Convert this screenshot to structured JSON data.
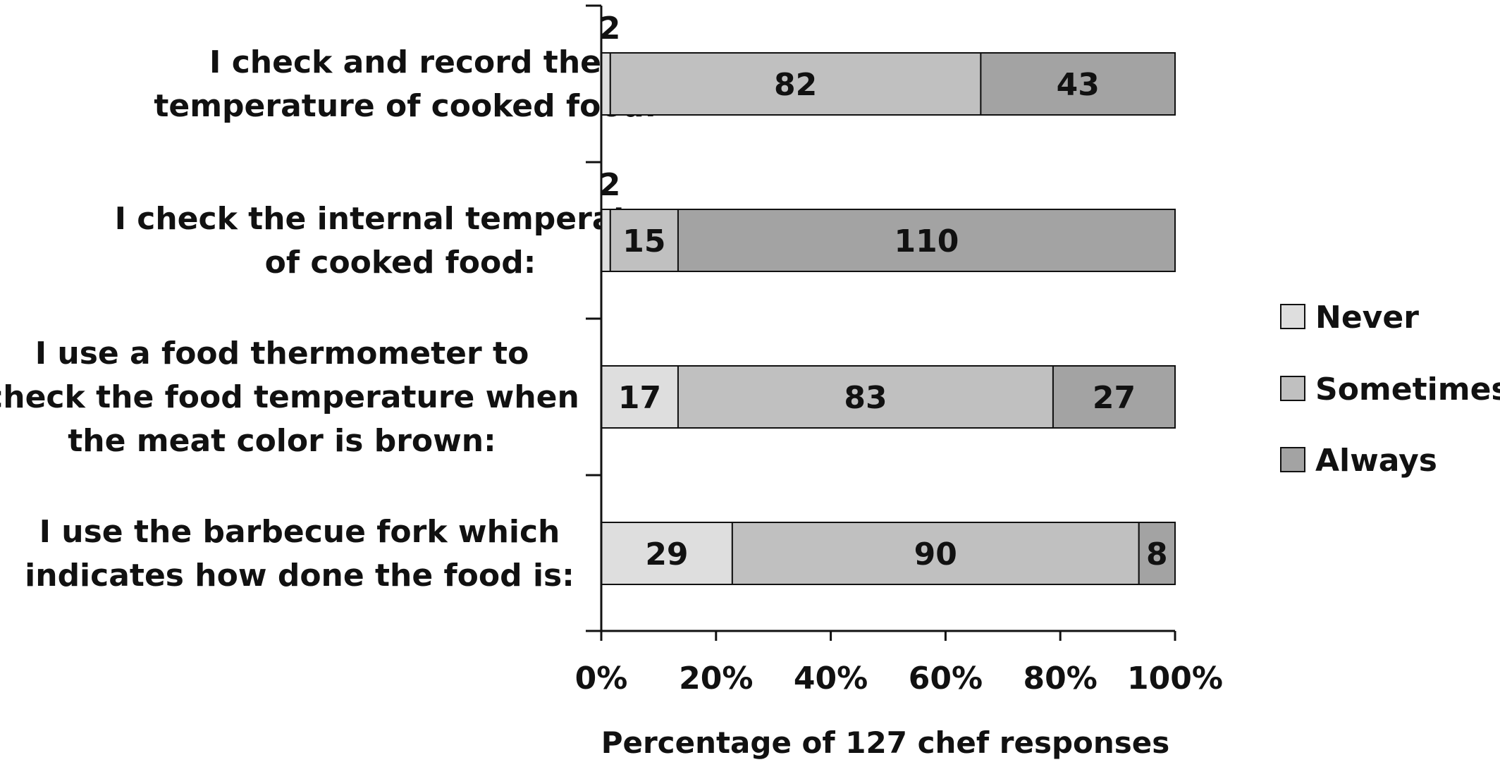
{
  "chart_data": {
    "type": "bar",
    "orientation": "horizontal",
    "stacked": "percent",
    "categories": [
      [
        "I check and record the",
        "temperature of cooked food:"
      ],
      [
        "I check the internal temperature",
        "of cooked food:"
      ],
      [
        "I use a food thermometer to",
        "check the food temperature when",
        "the meat color is brown:"
      ],
      [
        "I use the barbecue fork which",
        "indicates how done the food is:"
      ]
    ],
    "series": [
      {
        "name": "Never",
        "values": [
          2,
          2,
          17,
          29
        ],
        "color": "#dedede"
      },
      {
        "name": "Sometimes",
        "values": [
          82,
          15,
          83,
          90
        ],
        "color": "#c0c0c0"
      },
      {
        "name": "Always",
        "values": [
          43,
          110,
          27,
          8
        ],
        "color": "#a3a3a3"
      }
    ],
    "xlabel": "Percentage of 127 chef responses",
    "ylabel": "",
    "xlim": [
      0,
      100
    ],
    "xticks": [
      "0%",
      "20%",
      "40%",
      "60%",
      "80%",
      "100%"
    ],
    "legend": "right",
    "grid": false
  }
}
